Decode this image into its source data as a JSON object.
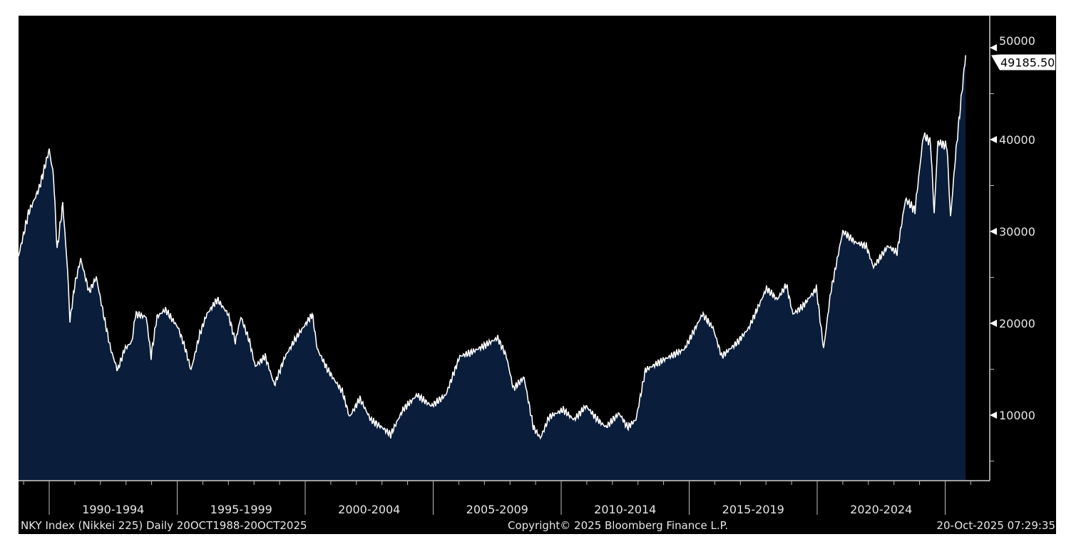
{
  "chart_data": {
    "type": "area",
    "title": "",
    "xlabel": "",
    "ylabel": "",
    "x_tick_labels": [
      "1990-1994",
      "1995-1999",
      "2000-2004",
      "2005-2009",
      "2010-2014",
      "2015-2019",
      "2020-2024"
    ],
    "y_ticks": [
      10000,
      20000,
      30000,
      40000,
      50000
    ],
    "y_tick_labels": [
      "10000",
      "20000",
      "30000",
      "40000",
      "50000"
    ],
    "xlim": [
      1988.8,
      2025.8
    ],
    "ylim": [
      2900,
      53500
    ],
    "y_axis_side": "right",
    "grid": false,
    "last_value_label": "49185.50",
    "colors": {
      "background": "#000000",
      "fill": "#0a1d3a",
      "line": "#ffffff",
      "text": "#e6e6e6"
    },
    "series": [
      {
        "x": [
          1988.8,
          1989.19,
          1989.61,
          1990.0,
          1990.17,
          1990.31,
          1990.53,
          1990.72,
          1990.81,
          1991.0,
          1991.23,
          1991.56,
          1991.84,
          1992.12,
          1992.4,
          1992.67,
          1992.95,
          1993.23,
          1993.37,
          1993.79,
          1993.98,
          1994.21,
          1994.54,
          1995.04,
          1995.32,
          1995.54,
          1995.88,
          1996.16,
          1996.57,
          1996.99,
          1997.27,
          1997.49,
          1997.83,
          1998.05,
          1998.44,
          1998.8,
          1999.22,
          1999.64,
          2000.28,
          2000.47,
          2000.89,
          2001.17,
          2001.45,
          2001.73,
          2002.14,
          2002.56,
          2002.98,
          2003.34,
          2003.82,
          2004.37,
          2004.93,
          2005.49,
          2006.04,
          2006.46,
          2007.02,
          2007.52,
          2007.86,
          2008.13,
          2008.55,
          2008.91,
          2009.19,
          2009.53,
          2010.08,
          2010.5,
          2010.97,
          2011.42,
          2011.75,
          2012.26,
          2012.59,
          2012.92,
          2013.29,
          2013.98,
          2014.82,
          2015.52,
          2015.93,
          2016.27,
          2016.91,
          2017.33,
          2018.02,
          2018.44,
          2018.8,
          2019.05,
          2019.42,
          2019.97,
          2020.25,
          2020.53,
          2021.0,
          2021.5,
          2021.92,
          2022.2,
          2022.76,
          2023.12,
          2023.45,
          2023.82,
          2024.15,
          2024.43,
          2024.57,
          2024.71,
          2025.07,
          2025.21,
          2025.4,
          2025.62,
          2025.8
        ],
        "values": [
          27300,
          32000,
          34700,
          38900,
          36000,
          28000,
          33000,
          25700,
          20300,
          24200,
          27000,
          23400,
          25000,
          21000,
          17200,
          14900,
          17200,
          18000,
          21000,
          20700,
          16400,
          20700,
          21500,
          19500,
          17200,
          14900,
          18800,
          21000,
          22600,
          21000,
          18000,
          20700,
          18000,
          15300,
          16400,
          13300,
          16400,
          18400,
          21000,
          17200,
          14900,
          13700,
          12600,
          9800,
          11800,
          9500,
          8700,
          7900,
          10600,
          12200,
          11000,
          12200,
          16400,
          16800,
          17600,
          18400,
          16400,
          12900,
          14100,
          8700,
          7500,
          9800,
          10600,
          9500,
          11000,
          9500,
          8700,
          10200,
          8700,
          9500,
          14900,
          16000,
          17200,
          21000,
          19500,
          16400,
          18000,
          19500,
          23800,
          22600,
          24200,
          21000,
          21800,
          23800,
          17200,
          23400,
          30000,
          28800,
          28400,
          26100,
          28400,
          27700,
          33500,
          32300,
          40500,
          39700,
          31900,
          39700,
          39300,
          31500,
          38100,
          44300,
          49185.5
        ]
      }
    ]
  },
  "footer": {
    "left": "NKY Index (Nikkei 225) Daily 20OCT1988-20OCT2025",
    "center": "Copyright© 2025 Bloomberg Finance L.P.",
    "right": "20-Oct-2025 07:29:35"
  }
}
